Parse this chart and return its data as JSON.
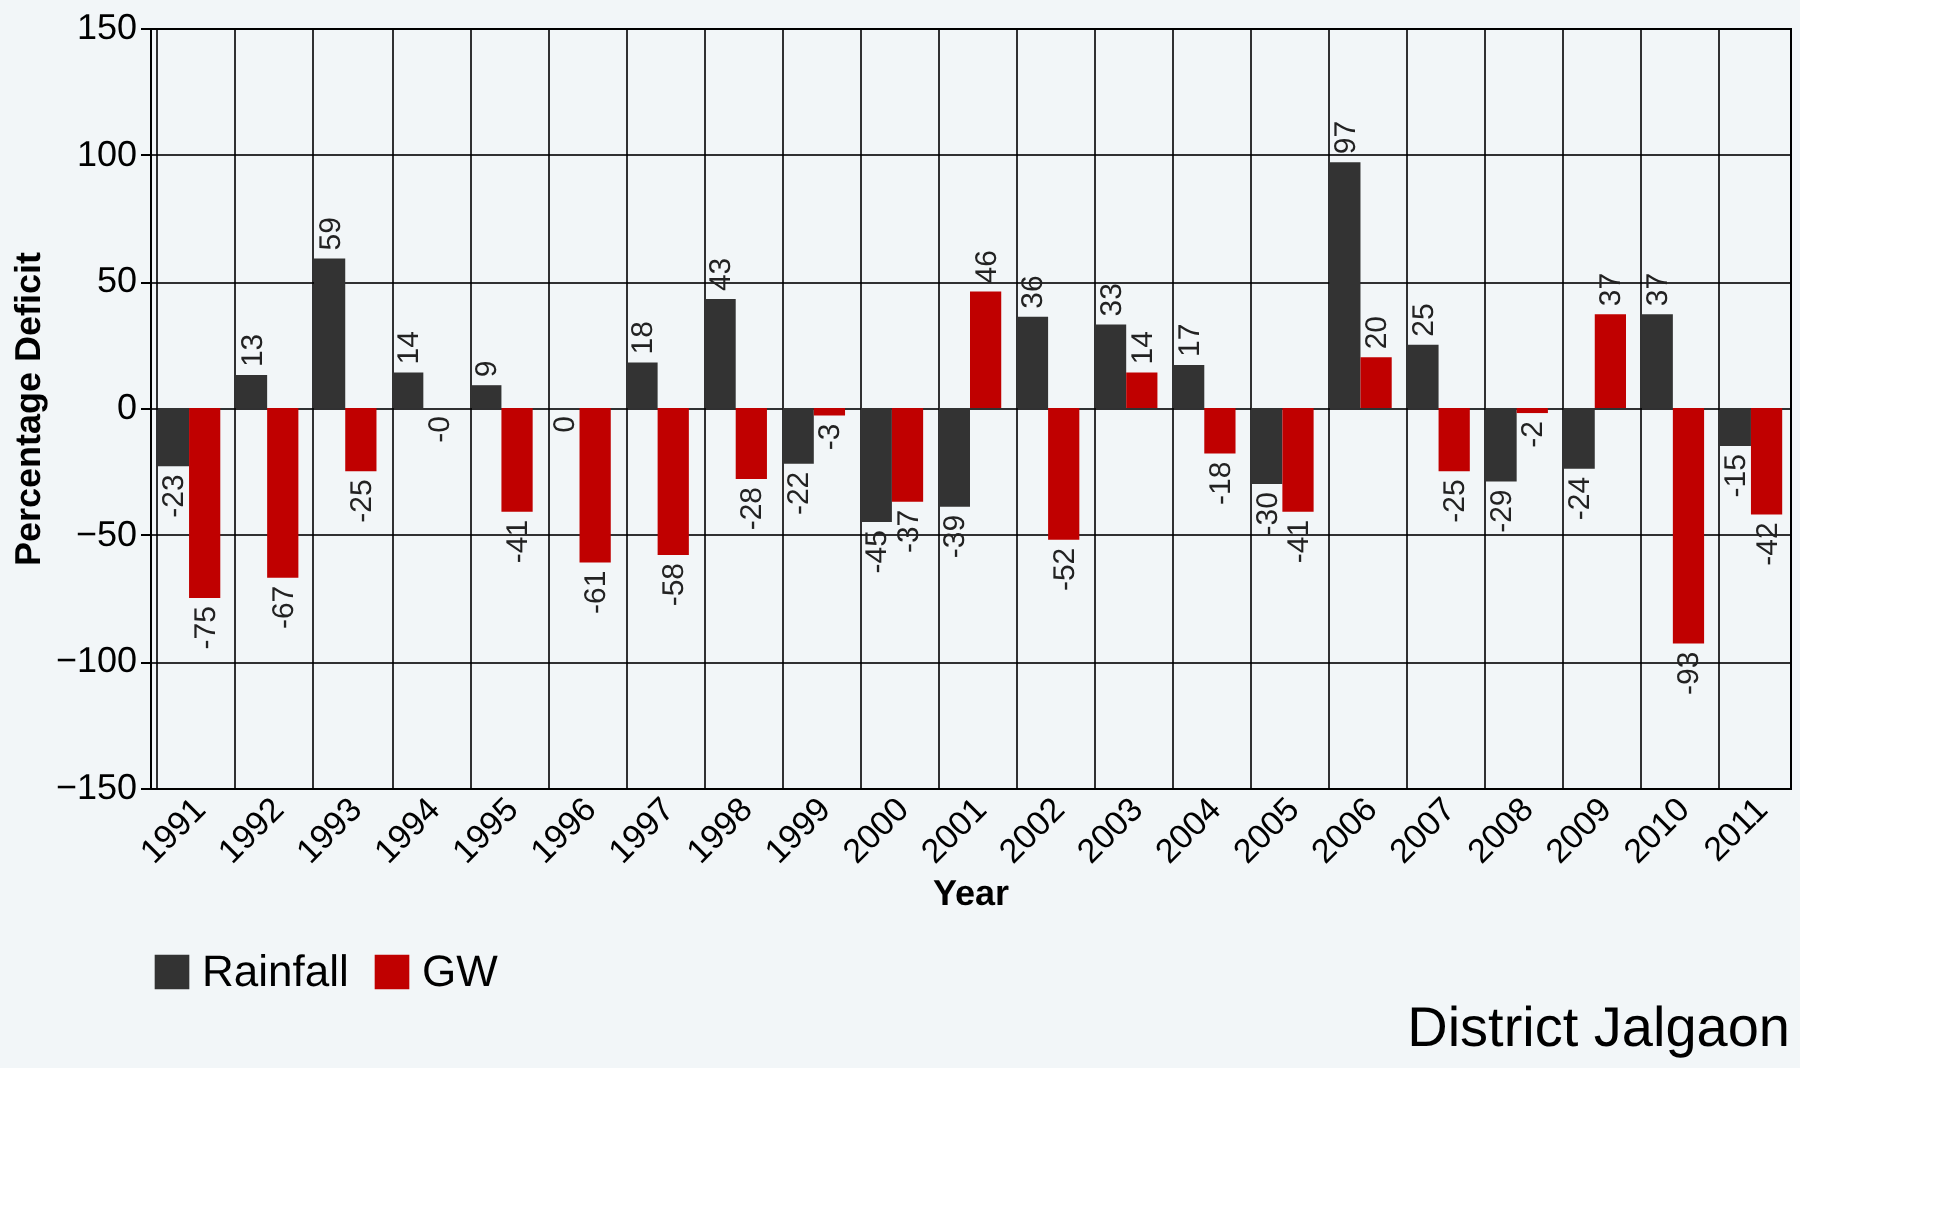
{
  "chart_data": {
    "type": "bar",
    "categories": [
      "1991",
      "1992",
      "1993",
      "1994",
      "1995",
      "1996",
      "1997",
      "1998",
      "1999",
      "2000",
      "2001",
      "2002",
      "2003",
      "2004",
      "2005",
      "2006",
      "2007",
      "2008",
      "2009",
      "2010",
      "2011"
    ],
    "series": [
      {
        "name": "Rainfall",
        "color": "#333333",
        "values": [
          -23,
          13,
          59,
          14,
          9,
          0,
          18,
          43,
          -22,
          -45,
          -39,
          36,
          33,
          17,
          -30,
          97,
          25,
          -29,
          -24,
          37,
          -15
        ]
      },
      {
        "name": "GW",
        "color": "#c00000",
        "values": [
          -75,
          -67,
          -25,
          0,
          -41,
          -61,
          -58,
          -28,
          -3,
          -37,
          46,
          -52,
          14,
          -18,
          -41,
          20,
          -25,
          -2,
          37,
          -93,
          -42
        ],
        "value_labels": [
          "-75",
          "-67",
          "-25",
          "-0",
          "-41",
          "-61",
          "-58",
          "-28",
          "-3",
          "-37",
          "46",
          "-52",
          "14",
          "-18",
          "-41",
          "20",
          "-25",
          "-2",
          "37",
          "-93",
          "-42"
        ]
      }
    ],
    "xlabel": "Year",
    "ylabel": "Percentage Deficit",
    "ylim": [
      -150,
      150
    ],
    "yticks": [
      -150,
      -100,
      -50,
      0,
      50,
      100,
      150
    ],
    "data_labels": true,
    "grid": true,
    "legend": "bottom",
    "annotations": [
      "District Jalgaon"
    ]
  }
}
